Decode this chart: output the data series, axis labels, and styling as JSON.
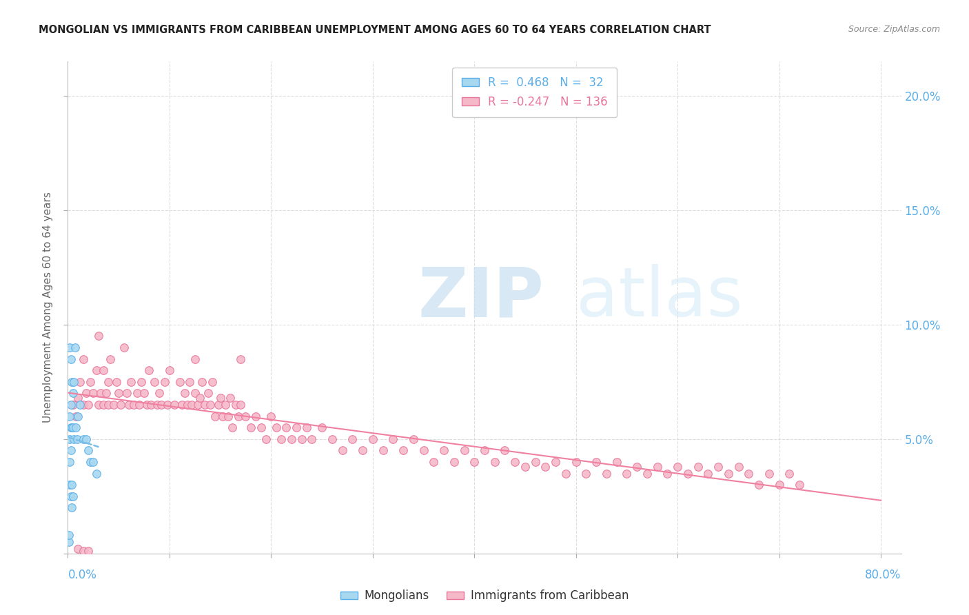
{
  "title": "MONGOLIAN VS IMMIGRANTS FROM CARIBBEAN UNEMPLOYMENT AMONG AGES 60 TO 64 YEARS CORRELATION CHART",
  "source": "Source: ZipAtlas.com",
  "ylabel": "Unemployment Among Ages 60 to 64 years",
  "mongolian_R": 0.468,
  "mongolian_N": 32,
  "caribbean_R": -0.247,
  "caribbean_N": 136,
  "legend_label_1": "Mongolians",
  "legend_label_2": "Immigrants from Caribbean",
  "watermark_zip": "ZIP",
  "watermark_atlas": "atlas",
  "mongolian_color": "#a8d8f0",
  "mongolian_edge_color": "#5baee8",
  "caribbean_color": "#f4b8c8",
  "caribbean_edge_color": "#e8749a",
  "mongolian_line_color": "#7bbfe8",
  "caribbean_line_color": "#f080a0",
  "right_axis_color": "#5baee8",
  "grid_color": "#dddddd",
  "xlim": [
    0.0,
    0.82
  ],
  "ylim": [
    0.0,
    0.215
  ],
  "y_ticks": [
    0.05,
    0.1,
    0.15,
    0.2
  ],
  "y_tick_labels": [
    "5.0%",
    "10.0%",
    "15.0%",
    "20.0%"
  ],
  "mongolian_x": [
    0.001,
    0.001,
    0.002,
    0.002,
    0.002,
    0.002,
    0.002,
    0.003,
    0.003,
    0.003,
    0.003,
    0.003,
    0.004,
    0.004,
    0.004,
    0.004,
    0.005,
    0.005,
    0.005,
    0.006,
    0.006,
    0.007,
    0.008,
    0.009,
    0.01,
    0.012,
    0.015,
    0.018,
    0.02,
    0.022,
    0.025,
    0.028
  ],
  "mongolian_y": [
    0.005,
    0.008,
    0.03,
    0.04,
    0.05,
    0.06,
    0.09,
    0.025,
    0.045,
    0.055,
    0.065,
    0.085,
    0.02,
    0.03,
    0.055,
    0.075,
    0.025,
    0.055,
    0.07,
    0.05,
    0.075,
    0.09,
    0.055,
    0.05,
    0.06,
    0.065,
    0.05,
    0.05,
    0.045,
    0.04,
    0.04,
    0.035
  ],
  "caribbean_x": [
    0.005,
    0.008,
    0.01,
    0.012,
    0.015,
    0.015,
    0.018,
    0.02,
    0.022,
    0.025,
    0.028,
    0.03,
    0.03,
    0.032,
    0.035,
    0.035,
    0.038,
    0.04,
    0.04,
    0.042,
    0.045,
    0.048,
    0.05,
    0.052,
    0.055,
    0.058,
    0.06,
    0.062,
    0.065,
    0.068,
    0.07,
    0.072,
    0.075,
    0.078,
    0.08,
    0.082,
    0.085,
    0.088,
    0.09,
    0.092,
    0.095,
    0.098,
    0.1,
    0.105,
    0.11,
    0.112,
    0.115,
    0.118,
    0.12,
    0.122,
    0.125,
    0.128,
    0.13,
    0.132,
    0.135,
    0.138,
    0.14,
    0.142,
    0.145,
    0.148,
    0.15,
    0.152,
    0.155,
    0.158,
    0.16,
    0.162,
    0.165,
    0.168,
    0.17,
    0.175,
    0.18,
    0.185,
    0.19,
    0.195,
    0.2,
    0.205,
    0.21,
    0.215,
    0.22,
    0.225,
    0.23,
    0.235,
    0.24,
    0.25,
    0.26,
    0.27,
    0.28,
    0.29,
    0.3,
    0.31,
    0.32,
    0.33,
    0.34,
    0.35,
    0.36,
    0.37,
    0.38,
    0.39,
    0.4,
    0.41,
    0.42,
    0.43,
    0.44,
    0.45,
    0.46,
    0.47,
    0.48,
    0.49,
    0.5,
    0.51,
    0.52,
    0.53,
    0.54,
    0.55,
    0.56,
    0.57,
    0.58,
    0.59,
    0.6,
    0.61,
    0.62,
    0.63,
    0.64,
    0.65,
    0.66,
    0.67,
    0.68,
    0.69,
    0.7,
    0.71,
    0.72,
    0.01,
    0.015,
    0.02,
    0.125,
    0.17
  ],
  "caribbean_y": [
    0.065,
    0.06,
    0.068,
    0.075,
    0.065,
    0.085,
    0.07,
    0.065,
    0.075,
    0.07,
    0.08,
    0.065,
    0.095,
    0.07,
    0.065,
    0.08,
    0.07,
    0.075,
    0.065,
    0.085,
    0.065,
    0.075,
    0.07,
    0.065,
    0.09,
    0.07,
    0.065,
    0.075,
    0.065,
    0.07,
    0.065,
    0.075,
    0.07,
    0.065,
    0.08,
    0.065,
    0.075,
    0.065,
    0.07,
    0.065,
    0.075,
    0.065,
    0.08,
    0.065,
    0.075,
    0.065,
    0.07,
    0.065,
    0.075,
    0.065,
    0.07,
    0.065,
    0.068,
    0.075,
    0.065,
    0.07,
    0.065,
    0.075,
    0.06,
    0.065,
    0.068,
    0.06,
    0.065,
    0.06,
    0.068,
    0.055,
    0.065,
    0.06,
    0.065,
    0.06,
    0.055,
    0.06,
    0.055,
    0.05,
    0.06,
    0.055,
    0.05,
    0.055,
    0.05,
    0.055,
    0.05,
    0.055,
    0.05,
    0.055,
    0.05,
    0.045,
    0.05,
    0.045,
    0.05,
    0.045,
    0.05,
    0.045,
    0.05,
    0.045,
    0.04,
    0.045,
    0.04,
    0.045,
    0.04,
    0.045,
    0.04,
    0.045,
    0.04,
    0.038,
    0.04,
    0.038,
    0.04,
    0.035,
    0.04,
    0.035,
    0.04,
    0.035,
    0.04,
    0.035,
    0.038,
    0.035,
    0.038,
    0.035,
    0.038,
    0.035,
    0.038,
    0.035,
    0.038,
    0.035,
    0.038,
    0.035,
    0.03,
    0.035,
    0.03,
    0.035,
    0.03,
    0.002,
    0.001,
    0.001,
    0.085,
    0.085
  ]
}
